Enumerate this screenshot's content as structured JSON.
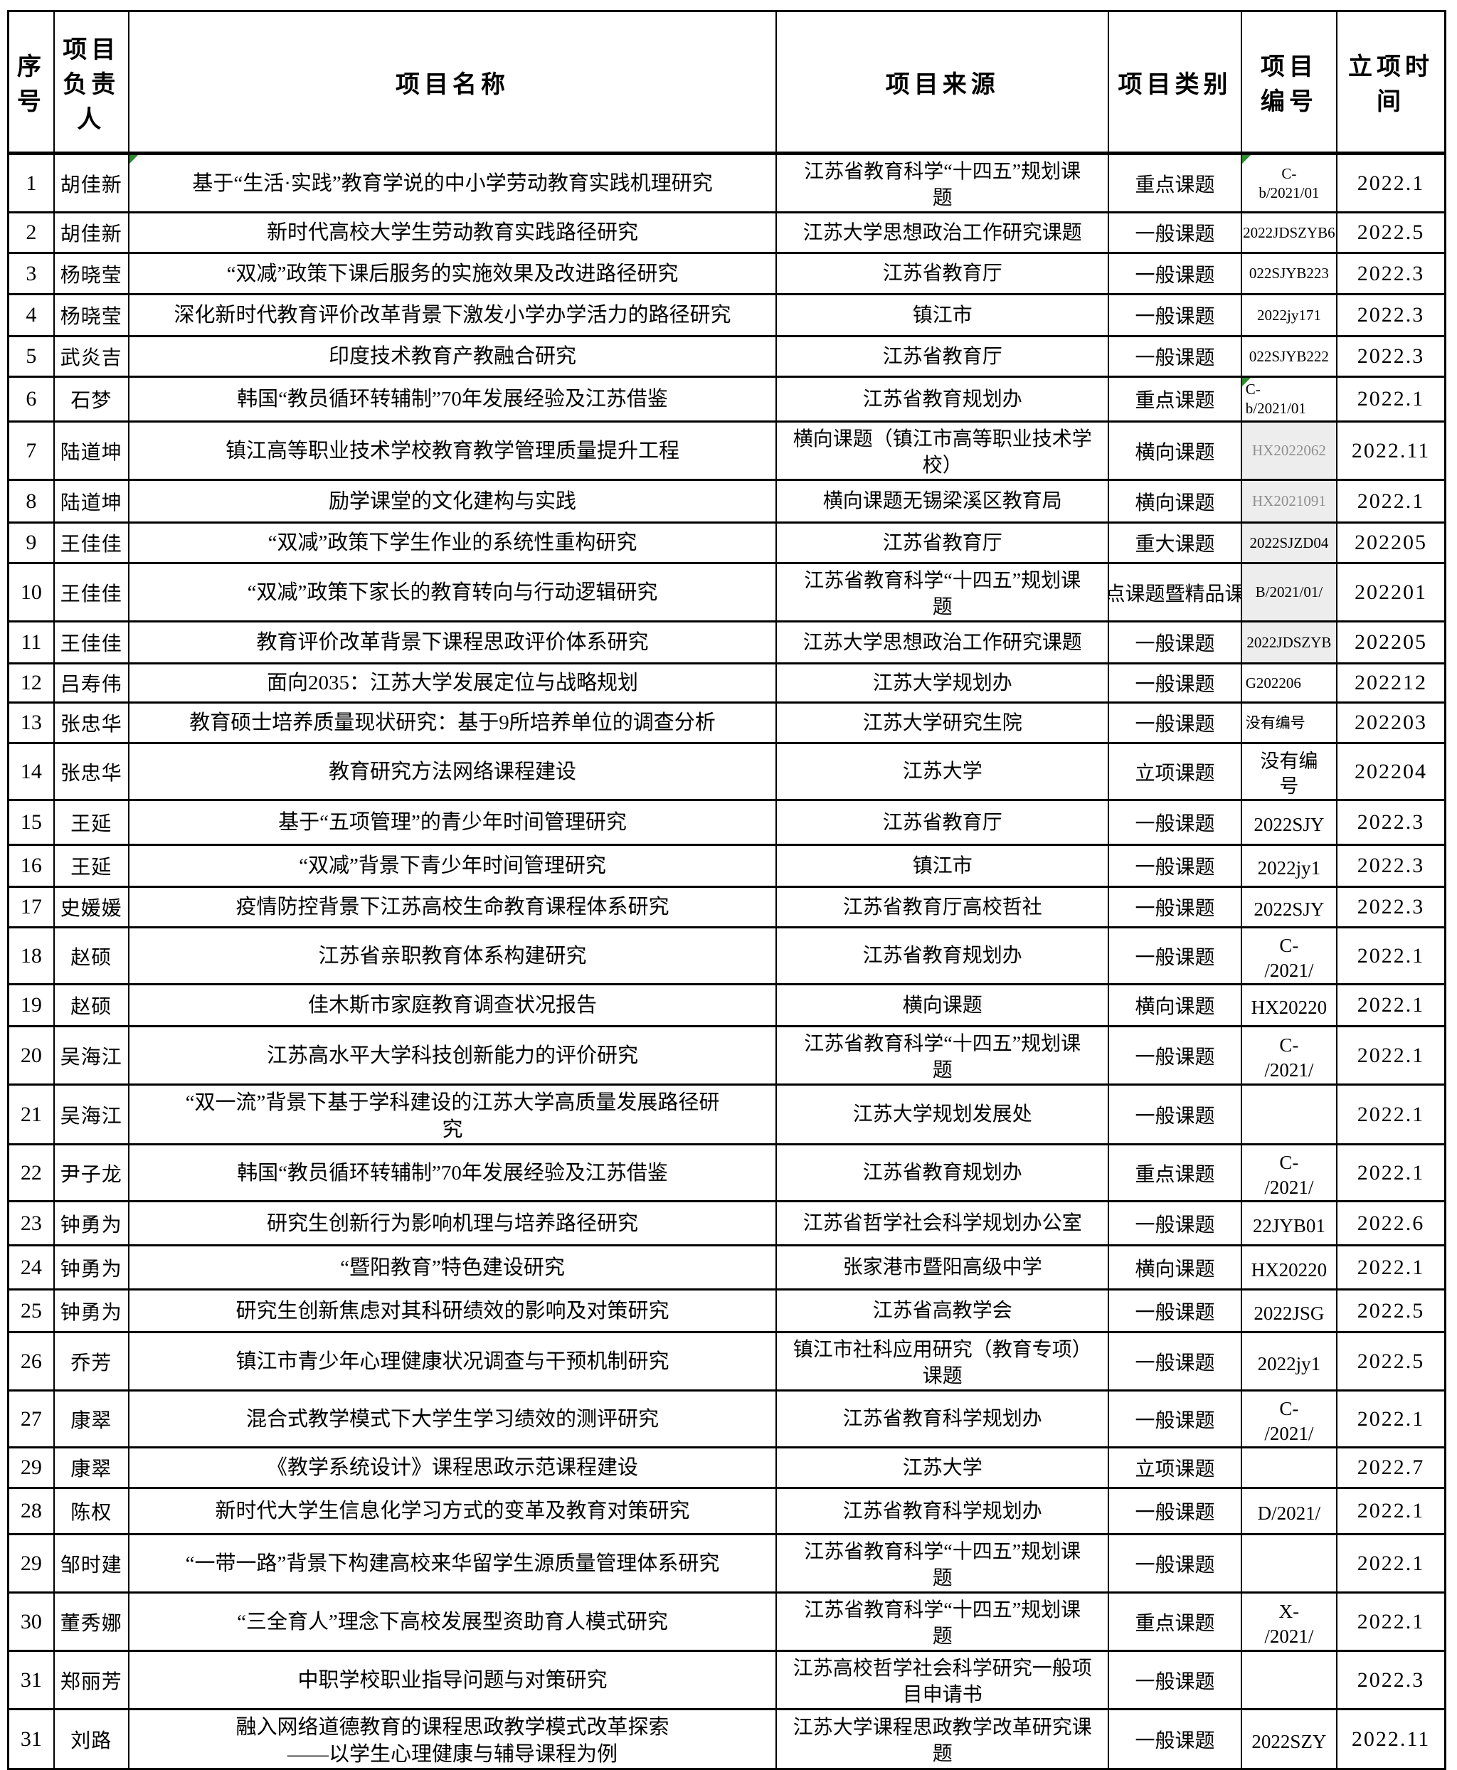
{
  "table": {
    "columns": [
      "序号",
      "项目负责人",
      "项目名称",
      "项目来源",
      "项目类别",
      "项目编号",
      "立项时间"
    ],
    "marker_color": "#2e8b2e",
    "gray_fill": "#ededed",
    "gray_text": "#8f8f8f",
    "rows": [
      {
        "no": "1",
        "leader": "胡佳新",
        "title": [
          "基于“生活·实践”教育学说的中小学劳动教育实践机理研究"
        ],
        "title_marker": true,
        "source": [
          "江苏省教育科学“十四五”规划课",
          "题"
        ],
        "category": "重点课题",
        "code": [
          "C-",
          "b/2021/01"
        ],
        "code_marker": true,
        "date": "2022.1"
      },
      {
        "no": "2",
        "leader": "胡佳新",
        "title": [
          "新时代高校大学生劳动教育实践路径研究"
        ],
        "source": [
          "江苏大学思想政治工作研究课题"
        ],
        "category": "一般课题",
        "code": [
          "2022JDSZYB6"
        ],
        "date": "2022.5"
      },
      {
        "no": "3",
        "leader": "杨晓莹",
        "title": [
          "“双减”政策下课后服务的实施效果及改进路径研究"
        ],
        "source": [
          "江苏省教育厅"
        ],
        "category": "一般课题",
        "code": [
          "022SJYB223"
        ],
        "date": "2022.3"
      },
      {
        "no": "4",
        "leader": "杨晓莹",
        "title": [
          "深化新时代教育评价改革背景下激发小学办学活力的路径研究"
        ],
        "source": [
          "镇江市"
        ],
        "category": "一般课题",
        "code": [
          "2022jy171"
        ],
        "date": "2022.3"
      },
      {
        "no": "5",
        "leader": "武炎吉",
        "title": [
          "印度技术教育产教融合研究"
        ],
        "source": [
          "江苏省教育厅"
        ],
        "category": "一般课题",
        "code": [
          "022SJYB222"
        ],
        "date": "2022.3"
      },
      {
        "no": "6",
        "leader": "石梦",
        "title": [
          "韩国“教员循环转辅制”70年发展经验及江苏借鉴"
        ],
        "source": [
          "江苏省教育规划办"
        ],
        "category": "重点课题",
        "code": [
          "C-",
          "b/2021/01"
        ],
        "code_marker": true,
        "date": "2022.1"
      },
      {
        "no": "7",
        "leader": "陆道坤",
        "title": [
          "镇江高等职业技术学校教育教学管理质量提升工程"
        ],
        "source": [
          "横向课题（镇江市高等职业技术学",
          "校）"
        ],
        "category": "横向课题",
        "code": [
          "HX2022062"
        ],
        "date": "2022.11"
      },
      {
        "no": "8",
        "leader": "陆道坤",
        "title": [
          "励学课堂的文化建构与实践"
        ],
        "source": [
          "横向课题无锡梁溪区教育局"
        ],
        "category": "横向课题",
        "code": [
          "HX2021091"
        ],
        "date": "2022.1"
      },
      {
        "no": "9",
        "leader": "王佳佳",
        "title": [
          "“双减”政策下学生作业的系统性重构研究"
        ],
        "source": [
          "江苏省教育厅"
        ],
        "category": "重大课题",
        "code": [
          "2022SJZD04"
        ],
        "date": "202205"
      },
      {
        "no": "10",
        "leader": "王佳佳",
        "title": [
          "“双减”政策下家长的教育转向与行动逻辑研究"
        ],
        "source": [
          "江苏省教育科学“十四五”规划课",
          "题"
        ],
        "category": "点课题暨精品课",
        "code": [
          "B/2021/01/"
        ],
        "date": "202201"
      },
      {
        "no": "11",
        "leader": "王佳佳",
        "title": [
          "教育评价改革背景下课程思政评价体系研究"
        ],
        "source": [
          "江苏大学思想政治工作研究课题"
        ],
        "category": "一般课题",
        "code": [
          "2022JDSZYB"
        ],
        "date": "202205"
      },
      {
        "no": "12",
        "leader": "吕寿伟",
        "title": [
          "面向2035：江苏大学发展定位与战略规划"
        ],
        "source": [
          "江苏大学规划办"
        ],
        "category": "一般课题",
        "code": [
          "G202206"
        ],
        "date": "202212"
      },
      {
        "no": "13",
        "leader": "张忠华",
        "title": [
          "教育硕士培养质量现状研究：基于9所培养单位的调查分析"
        ],
        "source": [
          "江苏大学研究生院"
        ],
        "category": "一般课题",
        "code": [
          "没有编号"
        ],
        "date": "202203"
      },
      {
        "no": "14",
        "leader": "张忠华",
        "title": [
          "教育研究方法网络课程建设"
        ],
        "source": [
          "江苏大学"
        ],
        "category": "立项课题",
        "code": [
          "没有编",
          "号"
        ],
        "date": "202204"
      },
      {
        "no": "15",
        "leader": "王延",
        "title": [
          "基于“五项管理”的青少年时间管理研究"
        ],
        "source": [
          "江苏省教育厅"
        ],
        "category": "一般课题",
        "code": [
          "2022SJY"
        ],
        "date": "2022.3"
      },
      {
        "no": "16",
        "leader": "王延",
        "title": [
          "“双减”背景下青少年时间管理研究"
        ],
        "source": [
          "镇江市"
        ],
        "category": "一般课题",
        "code": [
          "2022jy1"
        ],
        "date": "2022.3"
      },
      {
        "no": "17",
        "leader": "史媛媛",
        "title": [
          "疫情防控背景下江苏高校生命教育课程体系研究"
        ],
        "source": [
          "江苏省教育厅高校哲社"
        ],
        "category": "一般课题",
        "code": [
          "2022SJY"
        ],
        "date": "2022.3"
      },
      {
        "no": "18",
        "leader": "赵硕",
        "title": [
          "江苏省亲职教育体系构建研究"
        ],
        "source": [
          "江苏省教育规划办"
        ],
        "category": "一般课题",
        "code": [
          "C-",
          "/2021/"
        ],
        "date": "2022.1"
      },
      {
        "no": "19",
        "leader": "赵硕",
        "title": [
          "佳木斯市家庭教育调查状况报告"
        ],
        "source": [
          "横向课题"
        ],
        "category": "横向课题",
        "code": [
          "HX20220"
        ],
        "date": "2022.1"
      },
      {
        "no": "20",
        "leader": "吴海江",
        "title": [
          "江苏高水平大学科技创新能力的评价研究"
        ],
        "source": [
          "江苏省教育科学“十四五”规划课",
          "题"
        ],
        "category": "一般课题",
        "code": [
          "C-",
          "/2021/"
        ],
        "date": "2022.1"
      },
      {
        "no": "21",
        "leader": "吴海江",
        "title": [
          "“双一流”背景下基于学科建设的江苏大学高质量发展路径研",
          "究"
        ],
        "source": [
          "江苏大学规划发展处"
        ],
        "category": "一般课题",
        "code": [],
        "date": "2022.1"
      },
      {
        "no": "22",
        "leader": "尹子龙",
        "title": [
          "韩国“教员循环转辅制”70年发展经验及江苏借鉴"
        ],
        "source": [
          "江苏省教育规划办"
        ],
        "category": "重点课题",
        "code": [
          "C-",
          "/2021/"
        ],
        "date": "2022.1"
      },
      {
        "no": "23",
        "leader": "钟勇为",
        "title": [
          "研究生创新行为影响机理与培养路径研究"
        ],
        "source": [
          "江苏省哲学社会科学规划办公室"
        ],
        "category": "一般课题",
        "code": [
          "22JYB01"
        ],
        "date": "2022.6"
      },
      {
        "no": "24",
        "leader": "钟勇为",
        "title": [
          "“暨阳教育”特色建设研究"
        ],
        "source": [
          "张家港市暨阳高级中学"
        ],
        "category": "横向课题",
        "code": [
          "HX20220"
        ],
        "date": "2022.1"
      },
      {
        "no": "25",
        "leader": "钟勇为",
        "title": [
          "研究生创新焦虑对其科研绩效的影响及对策研究"
        ],
        "source": [
          "江苏省高教学会"
        ],
        "category": "一般课题",
        "code": [
          "2022JSG"
        ],
        "date": "2022.5"
      },
      {
        "no": "26",
        "leader": "乔芳",
        "title": [
          "镇江市青少年心理健康状况调查与干预机制研究"
        ],
        "source": [
          "镇江市社科应用研究（教育专项）",
          "课题"
        ],
        "category": "一般课题",
        "code": [
          "2022jy1"
        ],
        "date": "2022.5"
      },
      {
        "no": "27",
        "leader": "康翠",
        "title": [
          "混合式教学模式下大学生学习绩效的测评研究"
        ],
        "source": [
          "江苏省教育科学规划办"
        ],
        "category": "一般课题",
        "code": [
          "C-",
          "/2021/"
        ],
        "date": "2022.1"
      },
      {
        "no": "29",
        "leader": "康翠",
        "title": [
          "《教学系统设计》课程思政示范课程建设"
        ],
        "source": [
          "江苏大学"
        ],
        "category": "立项课题",
        "code": [],
        "date": "2022.7"
      },
      {
        "no": "28",
        "leader": "陈权",
        "title": [
          "新时代大学生信息化学习方式的变革及教育对策研究"
        ],
        "source": [
          "江苏省教育科学规划办"
        ],
        "category": "一般课题",
        "code": [
          "D/2021/"
        ],
        "date": "2022.1"
      },
      {
        "no": "29",
        "leader": "邹时建",
        "title": [
          "“一带一路”背景下构建高校来华留学生源质量管理体系研究"
        ],
        "source": [
          "江苏省教育科学“十四五”规划课",
          "题"
        ],
        "category": "一般课题",
        "code": [],
        "date": "2022.1"
      },
      {
        "no": "30",
        "leader": "董秀娜",
        "title": [
          "“三全育人”理念下高校发展型资助育人模式研究"
        ],
        "source": [
          "江苏省教育科学“十四五”规划课",
          "题"
        ],
        "category": "重点课题",
        "code": [
          "X-",
          "/2021/"
        ],
        "date": "2022.1"
      },
      {
        "no": "31",
        "leader": "郑丽芳",
        "title": [
          "中职学校职业指导问题与对策研究"
        ],
        "source": [
          "江苏高校哲学社会科学研究一般项",
          "目申请书"
        ],
        "category": "一般课题",
        "code": [],
        "date": "2022.3"
      },
      {
        "no": "31",
        "leader": "刘路",
        "title": [
          "融入网络道德教育的课程思政教学模式改革探索",
          "——以学生心理健康与辅导课程为例"
        ],
        "source": [
          "江苏大学课程思政教学改革研究课",
          "题"
        ],
        "category": "一般课题",
        "code": [
          "2022SZY"
        ],
        "date": "2022.11"
      }
    ]
  }
}
